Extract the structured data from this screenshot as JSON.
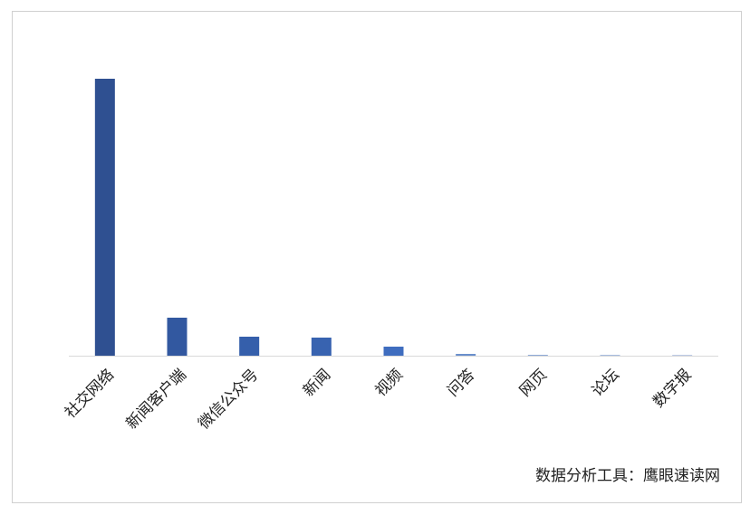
{
  "chart_data": {
    "type": "bar",
    "categories": [
      "社交网络",
      "新闻客户端",
      "微信公众号",
      "新闻",
      "视频",
      "问答",
      "网页",
      "论坛",
      "数字报"
    ],
    "values": [
      306,
      42,
      21,
      20,
      10,
      2,
      1,
      1,
      1
    ],
    "colors": [
      "#2f5091",
      "#3258a0",
      "#355fab",
      "#3863b0",
      "#3f6dbf",
      "#6a8fcc",
      "#8ea9d8",
      "#a7bce0",
      "#bccbe6"
    ],
    "annotation": "数据分析工具：鹰眼速读网"
  }
}
